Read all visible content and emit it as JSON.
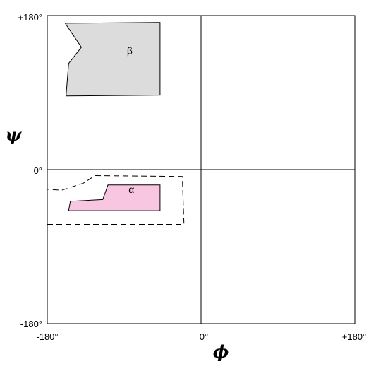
{
  "plot": {
    "x_range": [
      -180,
      180
    ],
    "y_range": [
      -180,
      180
    ],
    "x_tick_labels": [
      "-180°",
      "0°",
      "+180°"
    ],
    "y_tick_labels": [
      "+180°",
      "0°",
      "-180°"
    ],
    "x_axis_symbol": "ϕ",
    "y_axis_symbol": "ψ"
  },
  "regions": [
    {
      "label": "β",
      "fill": "#dcdcdc",
      "stroke": "#000000",
      "vertices": [
        [
          -159,
          171
        ],
        [
          -48,
          172
        ],
        [
          -48,
          87
        ],
        [
          -158,
          86
        ],
        [
          -155,
          124
        ],
        [
          -140,
          143
        ]
      ]
    },
    {
      "label": "α",
      "fill": "#f9c6e2",
      "stroke": "#000000",
      "vertices": [
        [
          -109,
          -18
        ],
        [
          -48,
          -18
        ],
        [
          -48,
          -48
        ],
        [
          -155,
          -48
        ],
        [
          -153,
          -37
        ],
        [
          -115,
          -35
        ]
      ]
    }
  ],
  "dashed_boundary": {
    "stroke": "#000000",
    "vertices": [
      [
        -180,
        -64
      ],
      [
        -20,
        -64
      ],
      [
        -22,
        -8
      ],
      [
        -124,
        -7
      ],
      [
        -138,
        -16
      ],
      [
        -163,
        -24
      ],
      [
        -180,
        -23
      ]
    ]
  }
}
